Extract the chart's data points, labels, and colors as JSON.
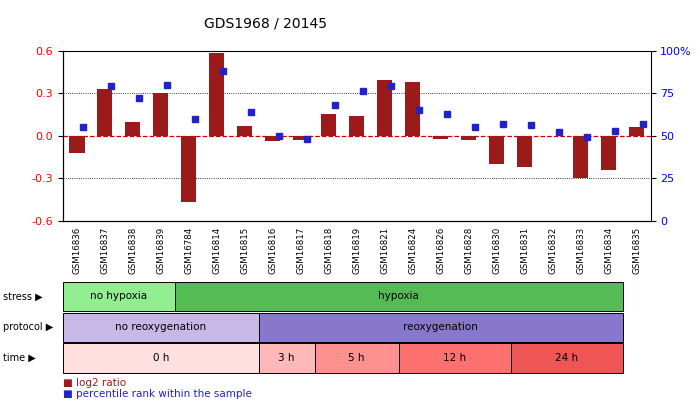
{
  "title": "GDS1968 / 20145",
  "samples": [
    "GSM16836",
    "GSM16837",
    "GSM16838",
    "GSM16839",
    "GSM16784",
    "GSM16814",
    "GSM16815",
    "GSM16816",
    "GSM16817",
    "GSM16818",
    "GSM16819",
    "GSM16821",
    "GSM16824",
    "GSM16826",
    "GSM16828",
    "GSM16830",
    "GSM16831",
    "GSM16832",
    "GSM16833",
    "GSM16834",
    "GSM16835"
  ],
  "log2_ratio": [
    -0.12,
    0.33,
    0.1,
    0.3,
    -0.47,
    0.58,
    0.07,
    -0.04,
    -0.03,
    0.15,
    0.14,
    0.39,
    0.38,
    -0.02,
    -0.03,
    -0.2,
    -0.22,
    0.0,
    -0.3,
    -0.24,
    0.06
  ],
  "percentile": [
    55,
    79,
    72,
    80,
    60,
    88,
    64,
    50,
    48,
    68,
    76,
    79,
    65,
    63,
    55,
    57,
    56,
    52,
    49,
    53,
    57
  ],
  "ylim": [
    -0.6,
    0.6
  ],
  "yticks_left": [
    -0.6,
    -0.3,
    0.0,
    0.3,
    0.6
  ],
  "yticks_right": [
    0,
    25,
    50,
    75,
    100
  ],
  "bar_color": "#9B1B1B",
  "dot_color": "#2222CC",
  "zero_line_color": "#CC0000",
  "bg_color": "#FFFFFF",
  "stress_regions": [
    {
      "label": "no hypoxia",
      "start": 0,
      "end": 4,
      "color": "#90EE90"
    },
    {
      "label": "hypoxia",
      "start": 4,
      "end": 20,
      "color": "#55BB55"
    }
  ],
  "protocol_regions": [
    {
      "label": "no reoxygenation",
      "start": 0,
      "end": 7,
      "color": "#C8B8E8"
    },
    {
      "label": "reoxygenation",
      "start": 7,
      "end": 20,
      "color": "#8878CC"
    }
  ],
  "time_regions": [
    {
      "label": "0 h",
      "start": 0,
      "end": 7,
      "color": "#FFE0E0"
    },
    {
      "label": "3 h",
      "start": 7,
      "end": 9,
      "color": "#FFB8B8"
    },
    {
      "label": "5 h",
      "start": 9,
      "end": 12,
      "color": "#FF9090"
    },
    {
      "label": "12 h",
      "start": 12,
      "end": 16,
      "color": "#FF7070"
    },
    {
      "label": "24 h",
      "start": 16,
      "end": 20,
      "color": "#EE5555"
    }
  ],
  "row_labels": [
    "stress",
    "protocol",
    "time"
  ],
  "legend_items": [
    {
      "label": "log2 ratio",
      "color": "#9B1B1B"
    },
    {
      "label": "percentile rank within the sample",
      "color": "#2222CC"
    }
  ]
}
